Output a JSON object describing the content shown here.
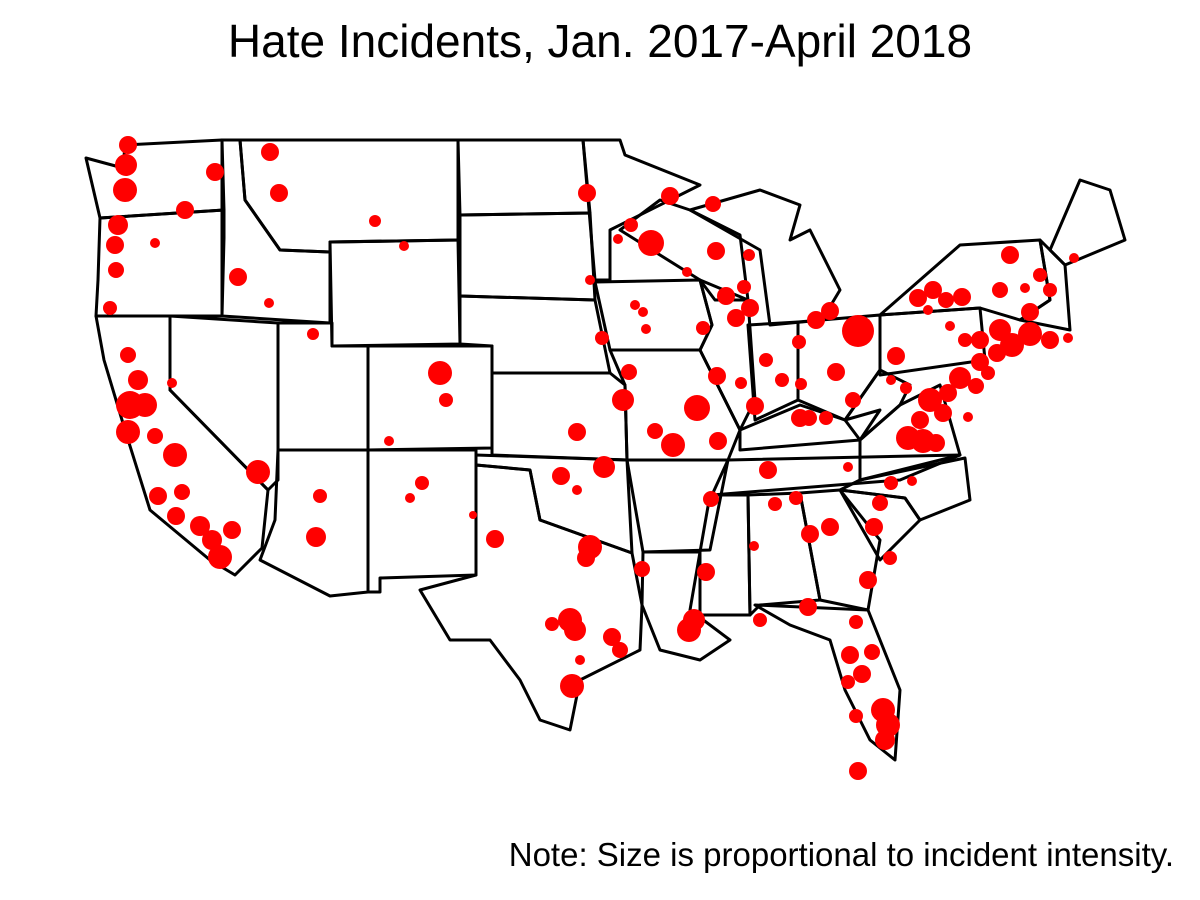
{
  "title": "Hate Incidents, Jan. 2017-April 2018",
  "note": "Note: Size is proportional to incident intensity.",
  "colors": {
    "incident": "#ff0000",
    "boundary": "#000000",
    "background": "#ffffff"
  },
  "map_region": "Contiguous United States"
}
